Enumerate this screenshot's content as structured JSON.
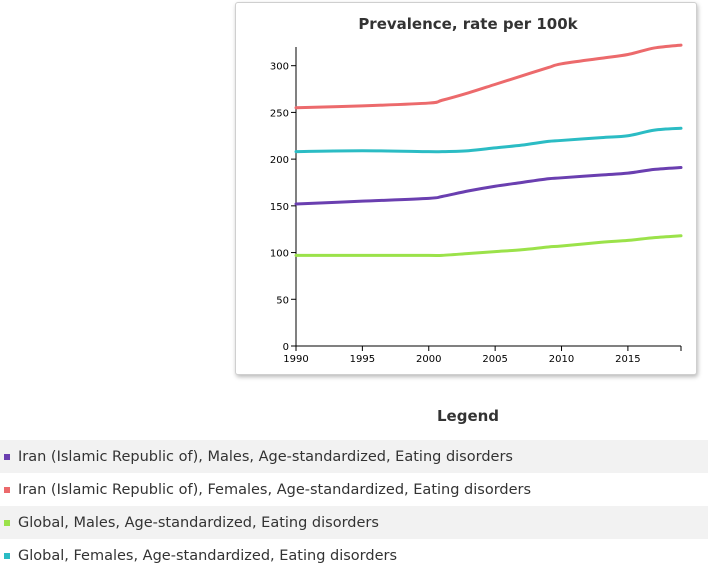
{
  "chart_data": {
    "type": "line",
    "title": "Prevalence, rate per 100k",
    "xlabel": "",
    "ylabel": "",
    "xlim": [
      1990,
      2019
    ],
    "ylim": [
      0,
      320
    ],
    "xticks": [
      1990,
      1995,
      2000,
      2005,
      2010,
      2015
    ],
    "yticks": [
      0,
      50,
      100,
      150,
      200,
      250,
      300
    ],
    "x": [
      1990,
      1995,
      2000,
      2001,
      2003,
      2005,
      2007,
      2009,
      2010,
      2013,
      2015,
      2017,
      2019
    ],
    "series": [
      {
        "name": "Iran (Islamic Republic of), Males, Age-standardized, Eating disorders",
        "color": "#6a3fb0",
        "values": [
          152,
          155,
          158,
          160,
          166,
          171,
          175,
          179,
          180,
          183,
          185,
          189,
          191
        ]
      },
      {
        "name": "Iran (Islamic Republic of), Females, Age-standardized, Eating disorders",
        "color": "#ec6a6c",
        "values": [
          255,
          257,
          260,
          263,
          271,
          280,
          289,
          298,
          302,
          308,
          312,
          319,
          322
        ]
      },
      {
        "name": "Global, Males, Age-standardized, Eating disorders",
        "color": "#9be24a",
        "values": [
          97,
          97,
          97,
          97,
          99,
          101,
          103,
          106,
          107,
          111,
          113,
          116,
          118
        ]
      },
      {
        "name": "Global, Females, Age-standardized, Eating disorders",
        "color": "#2bbcc4",
        "values": [
          208,
          209,
          208,
          208,
          209,
          212,
          215,
          219,
          220,
          223,
          225,
          231,
          233
        ]
      }
    ]
  },
  "legend": {
    "title": "Legend",
    "items": [
      {
        "label": "Iran (Islamic Republic of), Males, Age-standardized, Eating disorders",
        "color": "#6a3fb0"
      },
      {
        "label": "Iran (Islamic Republic of), Females, Age-standardized, Eating disorders",
        "color": "#ec6a6c"
      },
      {
        "label": "Global, Males, Age-standardized, Eating disorders",
        "color": "#9be24a"
      },
      {
        "label": "Global, Females, Age-standardized, Eating disorders",
        "color": "#2bbcc4"
      }
    ]
  }
}
